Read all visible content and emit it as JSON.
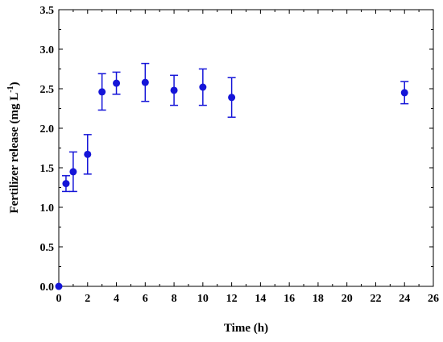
{
  "chart_data": {
    "type": "scatter",
    "title": "",
    "xlabel": "Time (h)",
    "ylabel_main": "Fertilizer release (mg L",
    "ylabel_sup": "-1",
    "ylabel_close": ")",
    "xlim": [
      0,
      26
    ],
    "ylim": [
      0,
      3.5
    ],
    "xticks": [
      0,
      2,
      4,
      6,
      8,
      10,
      12,
      14,
      16,
      18,
      20,
      22,
      24,
      26
    ],
    "xtick_labels": [
      "0",
      "2",
      "4",
      "6",
      "8",
      "10",
      "12",
      "14",
      "16",
      "18",
      "20",
      "22",
      "24",
      "26"
    ],
    "yticks": [
      0,
      0.5,
      1.0,
      1.5,
      2.0,
      2.5,
      3.0,
      3.5
    ],
    "ytick_labels": [
      "0.0",
      "0.5",
      "1.0",
      "1.5",
      "2.0",
      "2.5",
      "3.0",
      "3.5"
    ],
    "grid": false,
    "legend": false,
    "marker_color": "#1515d8",
    "series": [
      {
        "points": [
          {
            "x": 0,
            "y": 0.0,
            "err": 0
          },
          {
            "x": 0.5,
            "y": 1.3,
            "err": 0.1
          },
          {
            "x": 1,
            "y": 1.45,
            "err": 0.25
          },
          {
            "x": 2,
            "y": 1.67,
            "err": 0.25
          },
          {
            "x": 3,
            "y": 2.46,
            "err": 0.23
          },
          {
            "x": 4,
            "y": 2.57,
            "err": 0.14
          },
          {
            "x": 6,
            "y": 2.58,
            "err": 0.24
          },
          {
            "x": 8,
            "y": 2.48,
            "err": 0.19
          },
          {
            "x": 10,
            "y": 2.52,
            "err": 0.23
          },
          {
            "x": 12,
            "y": 2.39,
            "err": 0.25
          },
          {
            "x": 24,
            "y": 2.45,
            "err": 0.14
          }
        ]
      }
    ]
  }
}
